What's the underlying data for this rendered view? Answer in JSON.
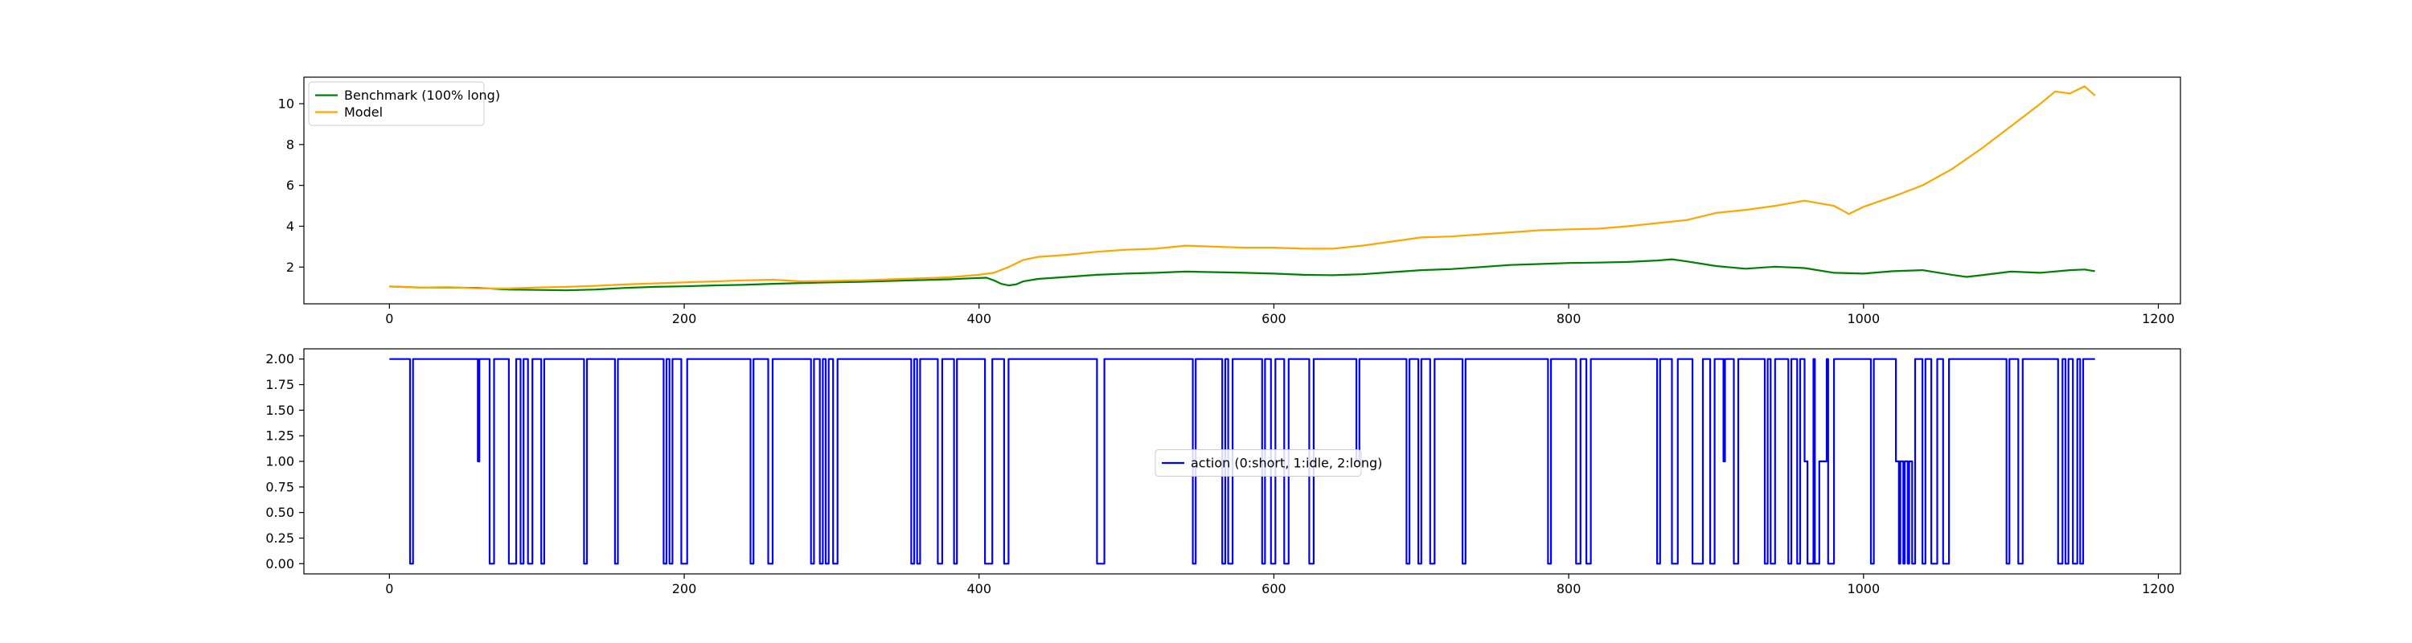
{
  "chart_data": [
    {
      "type": "line",
      "xlim": [
        -58,
        1215
      ],
      "ylim": [
        0.2,
        11.3
      ],
      "x_ticks": [
        0,
        200,
        400,
        600,
        800,
        1000,
        1200
      ],
      "x_tick_labels": [
        "0",
        "200",
        "400",
        "600",
        "800",
        "1000",
        "1200"
      ],
      "y_ticks": [
        2,
        4,
        6,
        8,
        10
      ],
      "y_tick_labels": [
        "2",
        "4",
        "6",
        "8",
        "10"
      ],
      "grid": false,
      "legend_position": "upper-left",
      "series": [
        {
          "name": "Benchmark (100% long)",
          "color": "#008000",
          "x": [
            0,
            20,
            40,
            60,
            80,
            100,
            120,
            140,
            160,
            180,
            200,
            220,
            240,
            260,
            280,
            300,
            320,
            340,
            360,
            380,
            395,
            405,
            410,
            415,
            420,
            425,
            430,
            440,
            460,
            480,
            500,
            520,
            540,
            560,
            580,
            600,
            620,
            640,
            660,
            680,
            700,
            720,
            740,
            760,
            780,
            800,
            820,
            840,
            860,
            870,
            880,
            900,
            920,
            940,
            960,
            980,
            1000,
            1020,
            1040,
            1060,
            1070,
            1080,
            1100,
            1120,
            1140,
            1150,
            1157
          ],
          "y": [
            1.05,
            1.0,
            1.0,
            0.98,
            0.9,
            0.88,
            0.86,
            0.9,
            0.98,
            1.03,
            1.06,
            1.1,
            1.13,
            1.18,
            1.22,
            1.25,
            1.28,
            1.32,
            1.36,
            1.4,
            1.45,
            1.48,
            1.35,
            1.18,
            1.1,
            1.15,
            1.3,
            1.42,
            1.52,
            1.62,
            1.68,
            1.72,
            1.78,
            1.75,
            1.72,
            1.68,
            1.62,
            1.6,
            1.65,
            1.75,
            1.85,
            1.9,
            2.0,
            2.1,
            2.15,
            2.2,
            2.22,
            2.25,
            2.32,
            2.38,
            2.28,
            2.05,
            1.92,
            2.02,
            1.95,
            1.72,
            1.68,
            1.8,
            1.85,
            1.62,
            1.52,
            1.6,
            1.78,
            1.72,
            1.85,
            1.88,
            1.8
          ]
        },
        {
          "name": "Model",
          "color": "#FFA500",
          "x": [
            0,
            20,
            40,
            60,
            80,
            100,
            120,
            140,
            160,
            180,
            200,
            220,
            240,
            260,
            280,
            300,
            320,
            340,
            360,
            380,
            400,
            410,
            420,
            430,
            440,
            460,
            480,
            500,
            520,
            540,
            560,
            580,
            600,
            620,
            640,
            660,
            680,
            700,
            720,
            740,
            760,
            780,
            800,
            820,
            840,
            860,
            880,
            900,
            920,
            940,
            960,
            980,
            990,
            1000,
            1020,
            1040,
            1060,
            1080,
            1100,
            1120,
            1130,
            1140,
            1150,
            1157
          ],
          "y": [
            1.05,
            1.0,
            1.02,
            0.95,
            0.95,
            1.0,
            1.03,
            1.08,
            1.15,
            1.2,
            1.25,
            1.3,
            1.35,
            1.38,
            1.3,
            1.32,
            1.35,
            1.4,
            1.45,
            1.5,
            1.62,
            1.72,
            2.0,
            2.35,
            2.5,
            2.6,
            2.75,
            2.85,
            2.9,
            3.05,
            3.0,
            2.95,
            2.95,
            2.9,
            2.9,
            3.05,
            3.25,
            3.45,
            3.5,
            3.6,
            3.7,
            3.8,
            3.85,
            3.88,
            4.0,
            4.15,
            4.3,
            4.65,
            4.8,
            5.0,
            5.25,
            5.0,
            4.6,
            4.95,
            5.45,
            6.0,
            6.8,
            7.8,
            8.9,
            10.0,
            10.6,
            10.5,
            10.85,
            10.4
          ]
        }
      ]
    },
    {
      "type": "line",
      "xlim": [
        -58,
        1215
      ],
      "ylim": [
        -0.1,
        2.1
      ],
      "x_ticks": [
        0,
        200,
        400,
        600,
        800,
        1000,
        1200
      ],
      "x_tick_labels": [
        "0",
        "200",
        "400",
        "600",
        "800",
        "1000",
        "1200"
      ],
      "y_ticks": [
        0.0,
        0.25,
        0.5,
        0.75,
        1.0,
        1.25,
        1.5,
        1.75,
        2.0
      ],
      "y_tick_labels": [
        "0.00",
        "0.25",
        "0.50",
        "0.75",
        "1.00",
        "1.25",
        "1.50",
        "1.75",
        "2.00"
      ],
      "grid": false,
      "legend_position": "center",
      "series": [
        {
          "name": "action (0:short, 1:idle, 2:long)",
          "color": "#0000FF",
          "segments": [
            [
              0,
              2
            ],
            [
              14,
              0
            ],
            [
              16,
              2
            ],
            [
              60,
              1
            ],
            [
              61,
              2
            ],
            [
              68,
              0
            ],
            [
              71,
              2
            ],
            [
              81,
              0
            ],
            [
              86,
              2
            ],
            [
              89,
              0
            ],
            [
              91,
              2
            ],
            [
              94,
              0
            ],
            [
              97,
              2
            ],
            [
              103,
              0
            ],
            [
              105,
              2
            ],
            [
              132,
              0
            ],
            [
              134,
              2
            ],
            [
              153,
              0
            ],
            [
              155,
              2
            ],
            [
              186,
              0
            ],
            [
              188,
              2
            ],
            [
              190,
              0
            ],
            [
              192,
              2
            ],
            [
              198,
              0
            ],
            [
              202,
              2
            ],
            [
              245,
              0
            ],
            [
              247,
              2
            ],
            [
              257,
              0
            ],
            [
              260,
              2
            ],
            [
              286,
              0
            ],
            [
              288,
              2
            ],
            [
              292,
              0
            ],
            [
              294,
              2
            ],
            [
              296,
              0
            ],
            [
              298,
              2
            ],
            [
              301,
              0
            ],
            [
              304,
              2
            ],
            [
              354,
              0
            ],
            [
              356,
              2
            ],
            [
              358,
              0
            ],
            [
              360,
              2
            ],
            [
              372,
              0
            ],
            [
              375,
              2
            ],
            [
              383,
              0
            ],
            [
              385,
              2
            ],
            [
              404,
              0
            ],
            [
              409,
              2
            ],
            [
              417,
              0
            ],
            [
              420,
              2
            ],
            [
              480,
              0
            ],
            [
              485,
              2
            ],
            [
              545,
              0
            ],
            [
              547,
              2
            ],
            [
              565,
              0
            ],
            [
              567,
              2
            ],
            [
              569,
              0
            ],
            [
              572,
              2
            ],
            [
              592,
              0
            ],
            [
              594,
              2
            ],
            [
              598,
              0
            ],
            [
              601,
              2
            ],
            [
              607,
              0
            ],
            [
              610,
              2
            ],
            [
              624,
              0
            ],
            [
              627,
              2
            ],
            [
              656,
              1
            ],
            [
              658,
              2
            ],
            [
              690,
              0
            ],
            [
              692,
              2
            ],
            [
              698,
              0
            ],
            [
              700,
              2
            ],
            [
              706,
              0
            ],
            [
              709,
              2
            ],
            [
              728,
              0
            ],
            [
              730,
              2
            ],
            [
              786,
              0
            ],
            [
              788,
              2
            ],
            [
              805,
              0
            ],
            [
              808,
              2
            ],
            [
              812,
              0
            ],
            [
              815,
              2
            ],
            [
              860,
              0
            ],
            [
              862,
              2
            ],
            [
              870,
              0
            ],
            [
              874,
              2
            ],
            [
              884,
              0
            ],
            [
              891,
              2
            ],
            [
              896,
              0
            ],
            [
              899,
              2
            ],
            [
              905,
              1
            ],
            [
              906,
              2
            ],
            [
              912,
              0
            ],
            [
              915,
              2
            ],
            [
              933,
              0
            ],
            [
              935,
              2
            ],
            [
              937,
              0
            ],
            [
              940,
              2
            ],
            [
              949,
              0
            ],
            [
              951,
              2
            ],
            [
              955,
              0
            ],
            [
              957,
              2
            ],
            [
              960,
              1
            ],
            [
              962,
              0
            ],
            [
              966,
              2
            ],
            [
              967,
              0
            ],
            [
              970,
              1
            ],
            [
              972,
              1
            ],
            [
              975,
              2
            ],
            [
              976,
              0
            ],
            [
              980,
              2
            ],
            [
              1005,
              0
            ],
            [
              1007,
              2
            ],
            [
              1022,
              1
            ],
            [
              1024,
              0
            ],
            [
              1025,
              1
            ],
            [
              1027,
              0
            ],
            [
              1028,
              1
            ],
            [
              1030,
              0
            ],
            [
              1031,
              1
            ],
            [
              1033,
              0
            ],
            [
              1035,
              2
            ],
            [
              1040,
              0
            ],
            [
              1042,
              2
            ],
            [
              1046,
              0
            ],
            [
              1050,
              2
            ],
            [
              1054,
              0
            ],
            [
              1058,
              2
            ],
            [
              1097,
              0
            ],
            [
              1099,
              2
            ],
            [
              1105,
              0
            ],
            [
              1108,
              2
            ],
            [
              1132,
              0
            ],
            [
              1135,
              2
            ],
            [
              1137,
              0
            ],
            [
              1139,
              2
            ],
            [
              1142,
              0
            ],
            [
              1145,
              2
            ],
            [
              1147,
              0
            ],
            [
              1149,
              2
            ],
            [
              1157,
              2
            ]
          ]
        }
      ]
    }
  ]
}
